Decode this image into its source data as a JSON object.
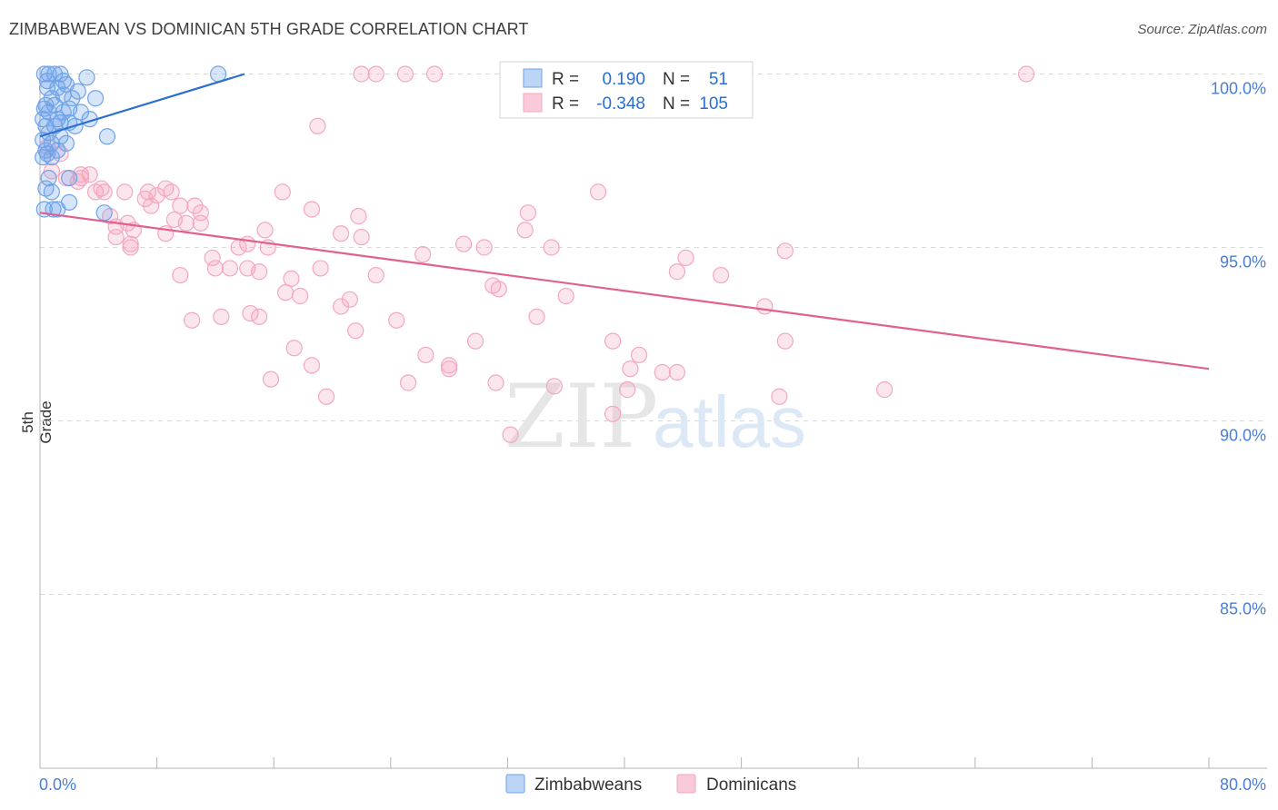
{
  "header": {
    "title": "ZIMBABWEAN VS DOMINICAN 5TH GRADE CORRELATION CHART",
    "source": "Source: ZipAtlas.com"
  },
  "watermark": {
    "part1": "ZIP",
    "part2": "atlas"
  },
  "chart_data": {
    "type": "scatter",
    "title": "ZIMBABWEAN VS DOMINICAN 5TH GRADE CORRELATION CHART",
    "xlabel": "",
    "ylabel": "5th Grade",
    "xlim": [
      0,
      80
    ],
    "ylim": [
      80.5,
      101.0
    ],
    "x_tick_labels": [
      "0.0%",
      "80.0%"
    ],
    "y_ticks": [
      85,
      90,
      95,
      100
    ],
    "y_tick_labels": [
      "85.0%",
      "90.0%",
      "95.0%",
      "100.0%"
    ],
    "grid": true,
    "legend": {
      "rows": [
        {
          "r_label": "R =",
          "r_value": "0.190",
          "n_label": "N =",
          "n_value": "51"
        },
        {
          "r_label": "R =",
          "r_value": "-0.348",
          "n_label": "N =",
          "n_value": "105"
        }
      ],
      "placement": "top-center"
    },
    "series": [
      {
        "name": "Zimbabweans",
        "color": "#6fa3e8",
        "line_color": "#2b6fd0",
        "trend": {
          "x": [
            0.0,
            14.0
          ],
          "y": [
            98.2,
            100.0
          ]
        },
        "points": [
          [
            0.3,
            100.0
          ],
          [
            0.6,
            100.0
          ],
          [
            1.0,
            100.0
          ],
          [
            1.4,
            100.0
          ],
          [
            3.2,
            99.9
          ],
          [
            12.2,
            100.0
          ],
          [
            0.5,
            99.6
          ],
          [
            1.2,
            99.6
          ],
          [
            1.8,
            99.7
          ],
          [
            2.6,
            99.5
          ],
          [
            0.8,
            99.3
          ],
          [
            1.6,
            99.4
          ],
          [
            2.2,
            99.3
          ],
          [
            3.8,
            99.3
          ],
          [
            0.4,
            99.1
          ],
          [
            1.0,
            99.1
          ],
          [
            2.0,
            99.0
          ],
          [
            0.6,
            98.9
          ],
          [
            2.8,
            98.9
          ],
          [
            0.2,
            98.7
          ],
          [
            1.2,
            98.7
          ],
          [
            2.0,
            98.6
          ],
          [
            3.4,
            98.7
          ],
          [
            0.4,
            98.5
          ],
          [
            1.0,
            98.5
          ],
          [
            2.4,
            98.5
          ],
          [
            0.6,
            98.3
          ],
          [
            1.4,
            98.2
          ],
          [
            4.6,
            98.2
          ],
          [
            0.2,
            98.1
          ],
          [
            0.8,
            98.0
          ],
          [
            1.8,
            98.0
          ],
          [
            0.4,
            97.8
          ],
          [
            1.2,
            97.8
          ],
          [
            0.2,
            97.6
          ],
          [
            0.8,
            97.6
          ],
          [
            0.6,
            97.0
          ],
          [
            2.0,
            97.0
          ],
          [
            0.4,
            96.7
          ],
          [
            0.8,
            96.6
          ],
          [
            2.0,
            96.3
          ],
          [
            0.3,
            96.1
          ],
          [
            0.9,
            96.1
          ],
          [
            4.4,
            96.0
          ],
          [
            1.2,
            96.1
          ],
          [
            0.5,
            99.8
          ],
          [
            1.6,
            99.8
          ],
          [
            0.3,
            99.0
          ],
          [
            1.6,
            98.9
          ],
          [
            0.5,
            97.7
          ],
          [
            1.4,
            98.6
          ]
        ]
      },
      {
        "name": "Dominicans",
        "color": "#f4a7bf",
        "line_color": "#e0608f",
        "trend": {
          "x": [
            0.0,
            80.0
          ],
          "y": [
            96.0,
            91.5
          ]
        },
        "points": [
          [
            22.0,
            100.0
          ],
          [
            23.0,
            100.0
          ],
          [
            25.0,
            100.0
          ],
          [
            27.0,
            100.0
          ],
          [
            32.0,
            100.0
          ],
          [
            67.5,
            100.0
          ],
          [
            19.0,
            98.5
          ],
          [
            0.5,
            97.9
          ],
          [
            1.4,
            97.7
          ],
          [
            0.8,
            97.2
          ],
          [
            1.8,
            97.0
          ],
          [
            2.8,
            97.1
          ],
          [
            3.4,
            97.1
          ],
          [
            2.6,
            96.9
          ],
          [
            4.2,
            96.7
          ],
          [
            3.8,
            96.6
          ],
          [
            5.8,
            96.6
          ],
          [
            7.4,
            96.6
          ],
          [
            8.6,
            96.7
          ],
          [
            8.0,
            96.5
          ],
          [
            9.0,
            96.6
          ],
          [
            16.6,
            96.6
          ],
          [
            38.2,
            96.6
          ],
          [
            7.2,
            96.4
          ],
          [
            7.6,
            96.2
          ],
          [
            9.6,
            96.2
          ],
          [
            10.6,
            96.2
          ],
          [
            18.6,
            96.1
          ],
          [
            33.4,
            96.0
          ],
          [
            4.8,
            95.9
          ],
          [
            21.8,
            95.9
          ],
          [
            9.2,
            95.8
          ],
          [
            10.0,
            95.7
          ],
          [
            11.0,
            95.7
          ],
          [
            6.0,
            95.7
          ],
          [
            5.2,
            95.6
          ],
          [
            6.4,
            95.5
          ],
          [
            15.4,
            95.5
          ],
          [
            20.6,
            95.4
          ],
          [
            8.6,
            95.4
          ],
          [
            33.2,
            95.5
          ],
          [
            5.2,
            95.3
          ],
          [
            22.0,
            95.3
          ],
          [
            29.0,
            95.1
          ],
          [
            14.2,
            95.1
          ],
          [
            13.6,
            95.0
          ],
          [
            6.2,
            95.0
          ],
          [
            15.6,
            95.0
          ],
          [
            35.0,
            95.0
          ],
          [
            30.4,
            95.0
          ],
          [
            51.0,
            94.9
          ],
          [
            11.8,
            94.7
          ],
          [
            26.2,
            94.8
          ],
          [
            44.2,
            94.7
          ],
          [
            12.0,
            94.4
          ],
          [
            14.2,
            94.4
          ],
          [
            19.2,
            94.4
          ],
          [
            9.6,
            94.2
          ],
          [
            23.0,
            94.2
          ],
          [
            43.6,
            94.3
          ],
          [
            46.6,
            94.2
          ],
          [
            17.2,
            94.1
          ],
          [
            31.0,
            93.9
          ],
          [
            31.4,
            93.8
          ],
          [
            16.8,
            93.7
          ],
          [
            17.8,
            93.6
          ],
          [
            21.2,
            93.5
          ],
          [
            20.6,
            93.3
          ],
          [
            49.6,
            93.3
          ],
          [
            14.4,
            93.1
          ],
          [
            12.4,
            93.0
          ],
          [
            15.0,
            93.0
          ],
          [
            10.4,
            92.9
          ],
          [
            24.4,
            92.9
          ],
          [
            34.0,
            93.0
          ],
          [
            21.6,
            92.6
          ],
          [
            29.8,
            92.3
          ],
          [
            39.2,
            92.3
          ],
          [
            51.0,
            92.3
          ],
          [
            17.4,
            92.1
          ],
          [
            26.4,
            91.9
          ],
          [
            41.0,
            91.9
          ],
          [
            18.6,
            91.6
          ],
          [
            28.0,
            91.5
          ],
          [
            40.4,
            91.5
          ],
          [
            42.6,
            91.4
          ],
          [
            43.6,
            91.4
          ],
          [
            15.8,
            91.2
          ],
          [
            25.2,
            91.1
          ],
          [
            31.2,
            91.1
          ],
          [
            35.2,
            91.0
          ],
          [
            40.2,
            90.9
          ],
          [
            57.8,
            90.9
          ],
          [
            50.6,
            90.7
          ],
          [
            19.6,
            90.7
          ],
          [
            39.2,
            90.2
          ],
          [
            32.2,
            89.6
          ],
          [
            6.2,
            95.1
          ],
          [
            13.0,
            94.4
          ],
          [
            4.4,
            96.6
          ],
          [
            2.8,
            97.0
          ],
          [
            15.0,
            94.3
          ],
          [
            28.0,
            91.6
          ],
          [
            36.0,
            93.6
          ],
          [
            11.0,
            96.0
          ]
        ]
      }
    ]
  }
}
